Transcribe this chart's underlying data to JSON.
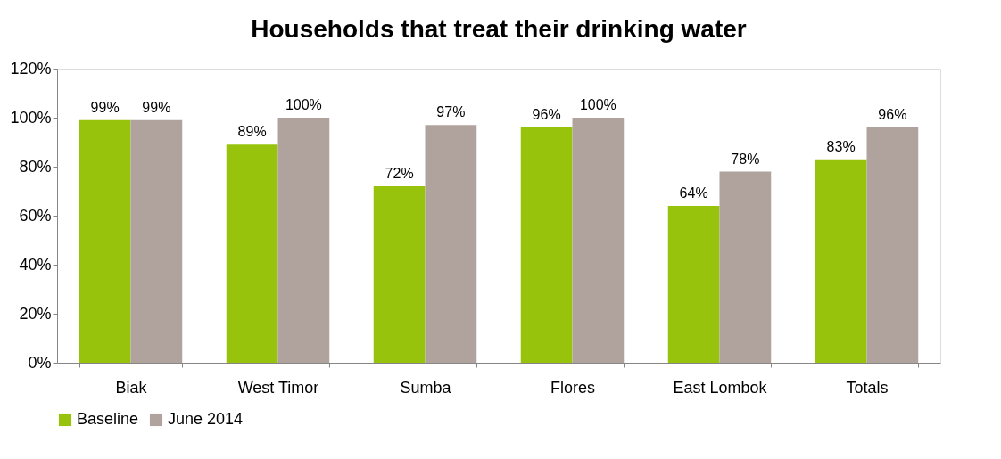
{
  "chart_data": {
    "type": "bar",
    "title": "Households that treat their drinking water",
    "categories": [
      "Biak",
      "West Timor",
      "Sumba",
      "Flores",
      "East Lombok",
      "Totals"
    ],
    "series": [
      {
        "name": "Baseline",
        "color": "#98c30c",
        "values": [
          99,
          89,
          72,
          96,
          64,
          83
        ],
        "value_labels": [
          "99%",
          "89%",
          "72%",
          "96%",
          "64%",
          "83%"
        ]
      },
      {
        "name": "June 2014",
        "color": "#b0a39e",
        "values": [
          99,
          100,
          97,
          100,
          78,
          96
        ],
        "value_labels": [
          "99%",
          "100%",
          "97%",
          "100%",
          "78%",
          "96%"
        ]
      }
    ],
    "ylim": [
      0,
      120
    ],
    "yticks": [
      {
        "value": 0,
        "label": "0%"
      },
      {
        "value": 20,
        "label": "20%"
      },
      {
        "value": 40,
        "label": "40%"
      },
      {
        "value": 60,
        "label": "60%"
      },
      {
        "value": 80,
        "label": "80%"
      },
      {
        "value": 100,
        "label": "100%"
      },
      {
        "value": 120,
        "label": "120%"
      }
    ],
    "grid": false,
    "legend": "bottom"
  }
}
